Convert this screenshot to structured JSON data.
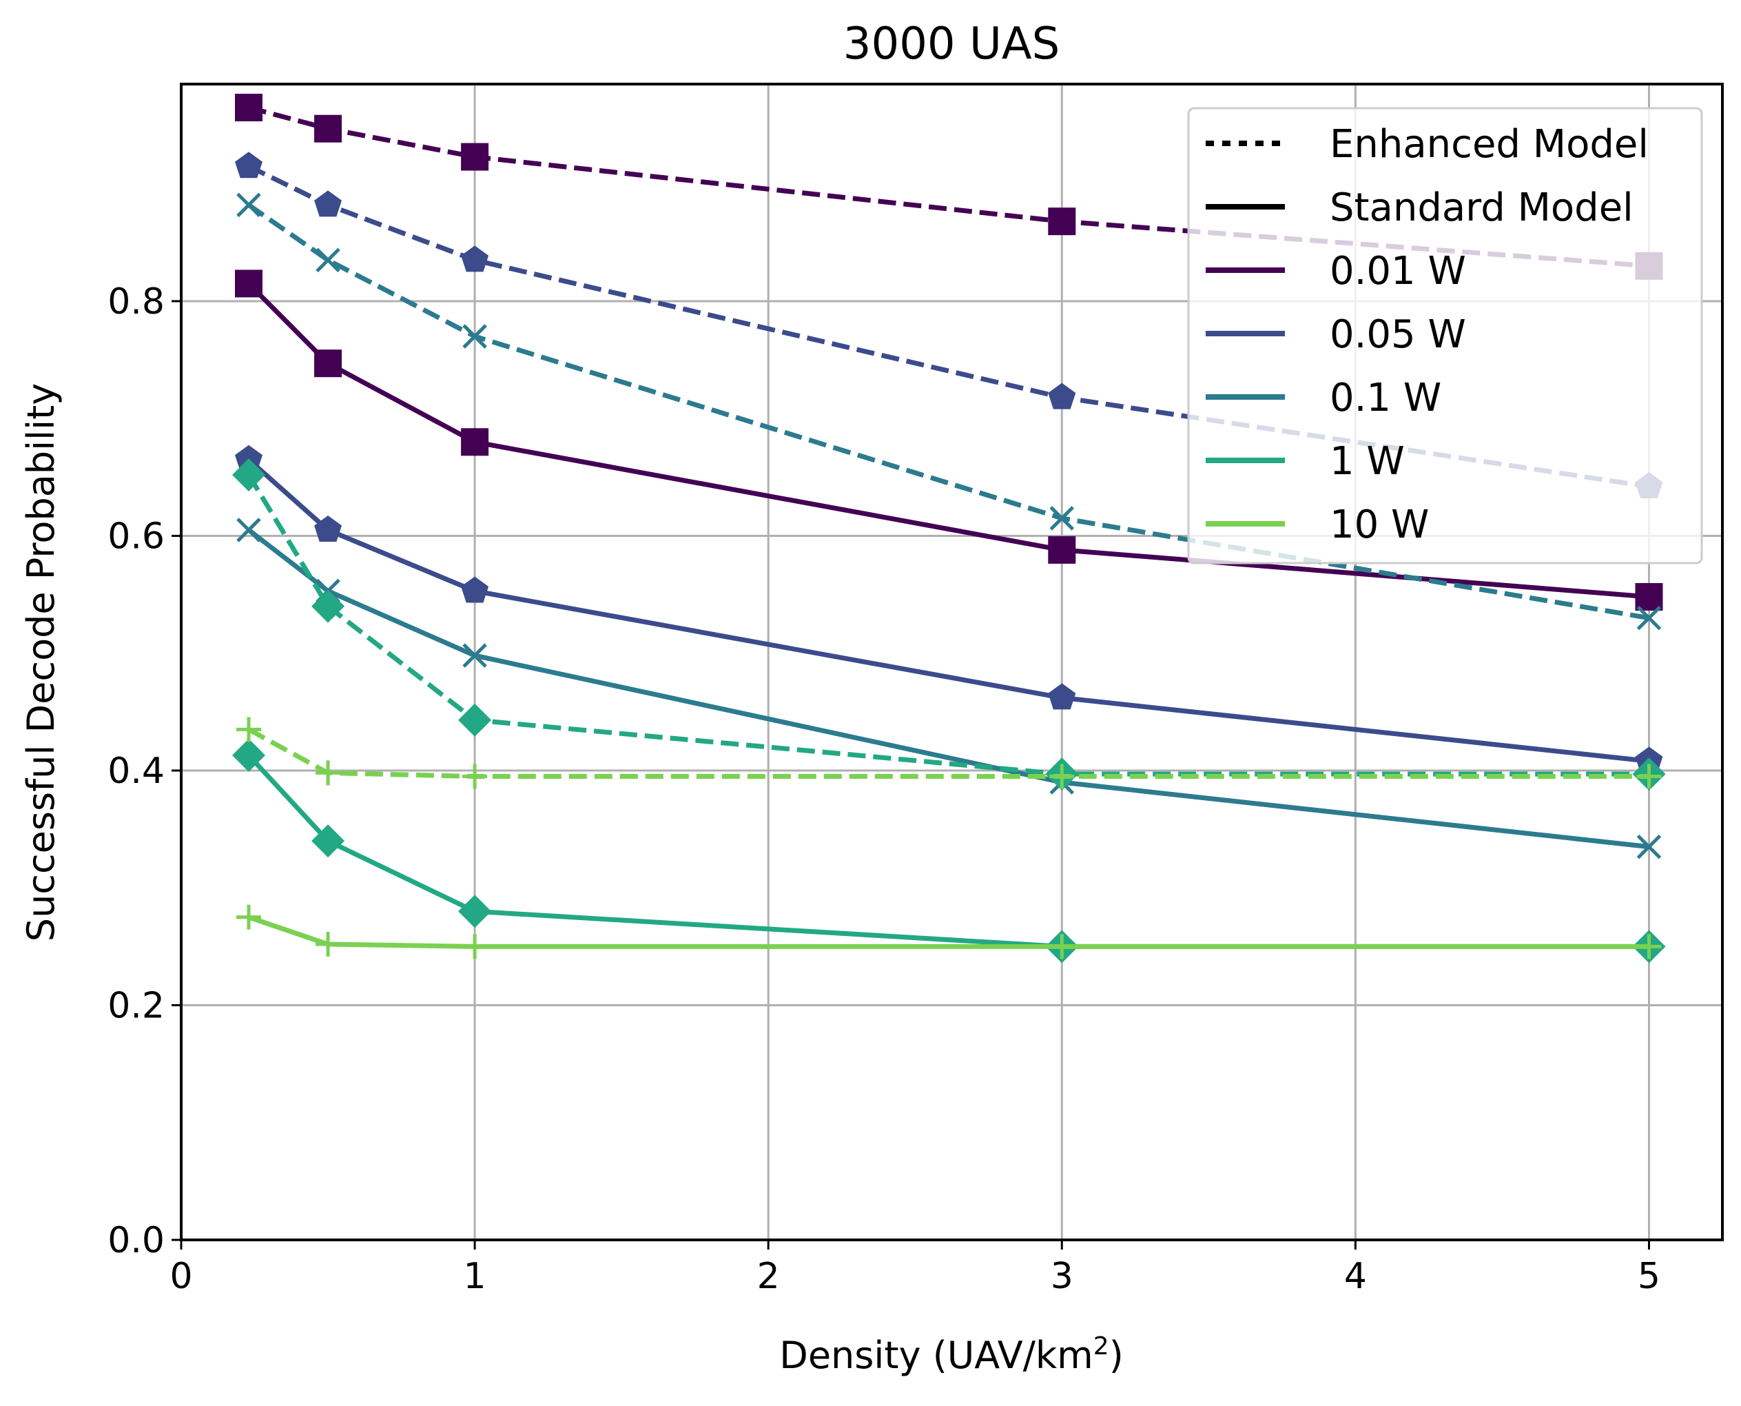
{
  "chart_data": {
    "type": "line",
    "title": "3000 UAS",
    "xlabel": "Density (UAV/km",
    "xlabel_sup": "2",
    "xlabel_suffix": ")",
    "ylabel": "Successful Decode Probability",
    "xlim": [
      0,
      5.25
    ],
    "ylim": [
      0,
      0.985
    ],
    "grid": true,
    "x_ticks": [
      0,
      1,
      2,
      3,
      4,
      5
    ],
    "x_tick_labels": [
      "0",
      "1",
      "2",
      "3",
      "4",
      "5"
    ],
    "y_ticks": [
      0.0,
      0.2,
      0.4,
      0.6,
      0.8
    ],
    "y_tick_labels": [
      "0.0",
      "0.2",
      "0.4",
      "0.6",
      "0.8"
    ],
    "x": [
      0.23,
      0.5,
      1,
      3,
      5
    ],
    "legend_position": "top-right",
    "legend": [
      {
        "label": "Enhanced Model",
        "style": "dotted",
        "color": "#000000"
      },
      {
        "label": "Standard Model",
        "style": "solid",
        "color": "#000000"
      },
      {
        "label": "0.01 W",
        "style": "solid",
        "color": "#440154"
      },
      {
        "label": "0.05 W",
        "style": "solid",
        "color": "#3b4b8c"
      },
      {
        "label": "0.1 W",
        "style": "solid",
        "color": "#2c7b8e"
      },
      {
        "label": "1 W",
        "style": "solid",
        "color": "#22a884"
      },
      {
        "label": "10 W",
        "style": "solid",
        "color": "#7ad151"
      }
    ],
    "series": [
      {
        "name": "0.01 W Enhanced",
        "color": "#440154",
        "marker": "square",
        "dashed": true,
        "values": [
          0.965,
          0.947,
          0.923,
          0.868,
          0.83
        ]
      },
      {
        "name": "0.01 W Standard",
        "color": "#440154",
        "marker": "square",
        "dashed": false,
        "values": [
          0.815,
          0.747,
          0.68,
          0.588,
          0.548
        ]
      },
      {
        "name": "0.05 W Enhanced",
        "color": "#3b4b8c",
        "marker": "pentagon",
        "dashed": true,
        "values": [
          0.915,
          0.882,
          0.835,
          0.718,
          0.642
        ]
      },
      {
        "name": "0.05 W Standard",
        "color": "#3b4b8c",
        "marker": "pentagon",
        "dashed": false,
        "values": [
          0.665,
          0.605,
          0.553,
          0.462,
          0.408
        ]
      },
      {
        "name": "0.1 W Enhanced",
        "color": "#2c7b8e",
        "marker": "x",
        "dashed": true,
        "values": [
          0.882,
          0.835,
          0.77,
          0.615,
          0.53
        ]
      },
      {
        "name": "0.1 W Standard",
        "color": "#2c7b8e",
        "marker": "x",
        "dashed": false,
        "values": [
          0.605,
          0.553,
          0.498,
          0.39,
          0.335
        ]
      },
      {
        "name": "1 W Enhanced",
        "color": "#22a884",
        "marker": "diamond",
        "dashed": true,
        "values": [
          0.652,
          0.54,
          0.443,
          0.397,
          0.397
        ]
      },
      {
        "name": "1 W Standard",
        "color": "#22a884",
        "marker": "diamond",
        "dashed": false,
        "values": [
          0.413,
          0.34,
          0.28,
          0.25,
          0.25
        ]
      },
      {
        "name": "10 W Enhanced",
        "color": "#7ad151",
        "marker": "plus",
        "dashed": true,
        "values": [
          0.435,
          0.398,
          0.395,
          0.395,
          0.395
        ]
      },
      {
        "name": "10 W Standard",
        "color": "#7ad151",
        "marker": "plus",
        "dashed": false,
        "values": [
          0.275,
          0.252,
          0.25,
          0.25,
          0.25
        ]
      }
    ]
  }
}
